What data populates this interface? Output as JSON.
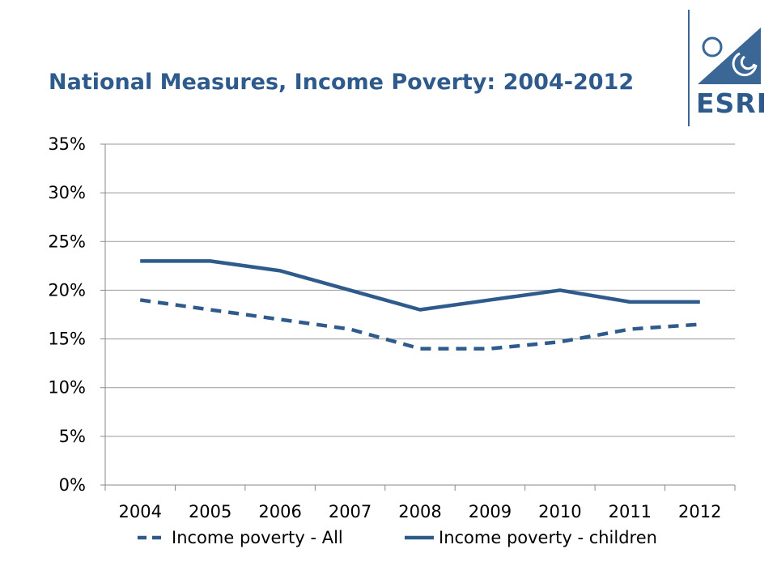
{
  "slide": {
    "title": "National Measures, Income Poverty: 2004-2012",
    "logo_text": "ESRI",
    "brand_color": "#2E5A8C"
  },
  "chart_data": {
    "type": "line",
    "title": "National Measures, Income Poverty: 2004-2012",
    "categories": [
      "2004",
      "2005",
      "2006",
      "2007",
      "2008",
      "2009",
      "2010",
      "2011",
      "2012"
    ],
    "y_ticks": [
      "0%",
      "5%",
      "10%",
      "15%",
      "20%",
      "25%",
      "30%",
      "35%"
    ],
    "ylim": [
      0,
      35
    ],
    "grid": true,
    "legend_position": "bottom",
    "series": [
      {
        "name": "Income poverty - All",
        "style": "dashed",
        "color": "#2E5A8C",
        "values": [
          19,
          18,
          17,
          16,
          14,
          14,
          14.7,
          16,
          16.5
        ]
      },
      {
        "name": "Income poverty - children",
        "style": "solid",
        "color": "#2E5A8C",
        "values": [
          23,
          23,
          22,
          20,
          18,
          19,
          20,
          18.8,
          18.8
        ]
      }
    ]
  }
}
